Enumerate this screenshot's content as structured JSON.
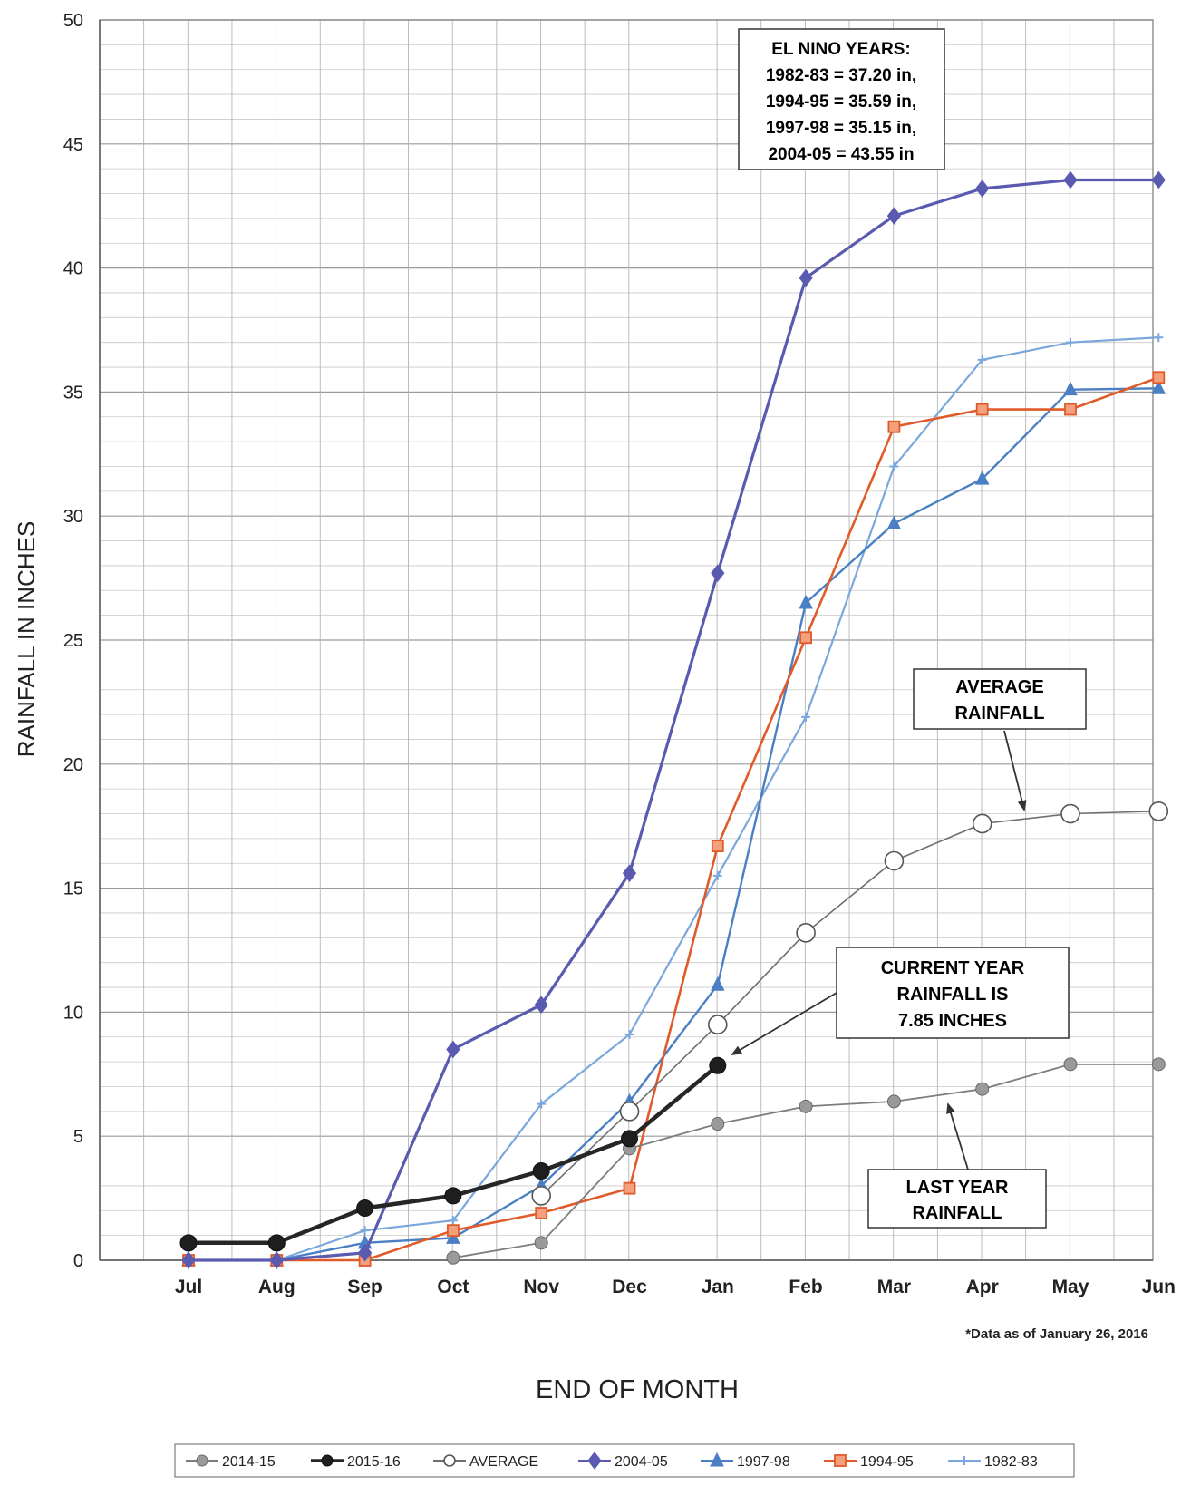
{
  "chart_data": {
    "type": "line",
    "title": "",
    "xlabel": "END OF MONTH",
    "ylabel": "RAINFALL IN INCHES",
    "ylim": [
      0,
      50
    ],
    "yticks": [
      0,
      5,
      10,
      15,
      20,
      25,
      30,
      35,
      40,
      45,
      50
    ],
    "categories": [
      "Jul",
      "Aug",
      "Sep",
      "Oct",
      "Nov",
      "Dec",
      "Jan",
      "Feb",
      "Mar",
      "Apr",
      "May",
      "Jun"
    ],
    "grid": true,
    "legend_position": "bottom",
    "series": [
      {
        "name": "2014-15",
        "color": "#7d7d7d",
        "marker": "circle-filled",
        "values": [
          null,
          null,
          null,
          0.1,
          0.7,
          4.5,
          5.5,
          6.2,
          6.4,
          6.9,
          7.9,
          7.9
        ]
      },
      {
        "name": "2015-16",
        "color": "#262626",
        "marker": "circle-filled-large",
        "values": [
          0.7,
          0.7,
          2.1,
          2.6,
          3.6,
          4.9,
          7.85,
          null,
          null,
          null,
          null,
          null
        ]
      },
      {
        "name": "AVERAGE",
        "color": "#6e6e6e",
        "marker": "circle-open",
        "values": [
          null,
          null,
          null,
          null,
          2.6,
          6.0,
          9.5,
          13.2,
          16.1,
          17.6,
          18.0,
          18.1
        ]
      },
      {
        "name": "2004-05",
        "color": "#5a5ab0",
        "marker": "diamond",
        "values": [
          0.0,
          0.0,
          0.3,
          8.5,
          10.3,
          15.6,
          27.7,
          39.6,
          42.1,
          43.2,
          43.55,
          43.55
        ]
      },
      {
        "name": "1997-98",
        "color": "#4a7fc4",
        "marker": "triangle",
        "values": [
          0.0,
          0.0,
          0.7,
          0.9,
          3.0,
          6.4,
          11.1,
          26.5,
          29.7,
          31.5,
          35.1,
          35.15
        ]
      },
      {
        "name": "1994-95",
        "color": "#e05a2a",
        "marker": "square",
        "values": [
          0.0,
          0.0,
          0.0,
          1.2,
          1.9,
          2.9,
          16.7,
          25.1,
          33.6,
          34.3,
          34.3,
          35.59
        ]
      },
      {
        "name": "1982-83",
        "color": "#7aa7dc",
        "marker": "plus",
        "values": [
          0.0,
          0.0,
          1.2,
          1.6,
          6.3,
          9.1,
          15.5,
          21.9,
          32.0,
          36.3,
          37.0,
          37.2
        ]
      }
    ],
    "annotations": {
      "el_nino_box": [
        "EL NINO YEARS:",
        "1982-83 = 37.20 in,",
        "1994-95 = 35.59 in,",
        "1997-98 = 35.15 in,",
        "2004-05 = 43.55 in"
      ],
      "average_box": [
        "AVERAGE",
        "RAINFALL"
      ],
      "current_box": [
        "CURRENT YEAR",
        "RAINFALL IS",
        "7.85 INCHES"
      ],
      "last_year_box": [
        "LAST YEAR",
        "RAINFALL"
      ],
      "footnote": "*Data as of January 26, 2016"
    }
  }
}
